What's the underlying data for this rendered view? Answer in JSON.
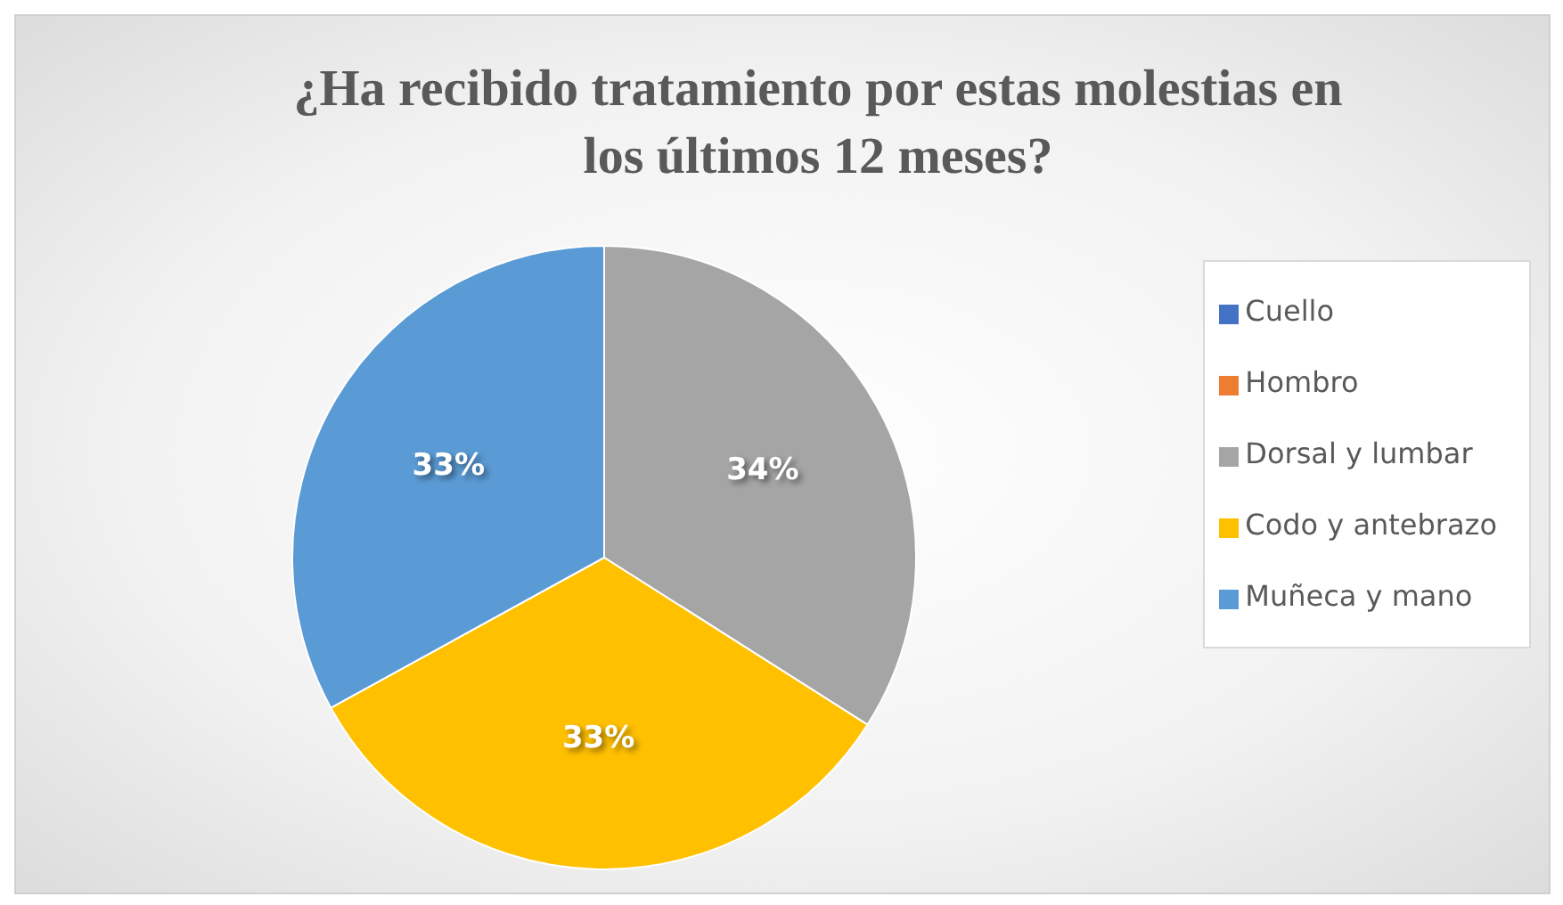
{
  "chart_data": {
    "type": "pie",
    "title": "¿Ha recibido tratamiento por estas molestias en los últimos 12 meses?",
    "categories": [
      "Cuello",
      "Hombro",
      "Dorsal y lumbar",
      "Codo y antebrazo",
      "Muñeca y mano"
    ],
    "values": [
      0,
      0,
      34,
      33,
      33
    ],
    "colors": [
      "#4472c4",
      "#ed7d31",
      "#a5a5a5",
      "#ffc000",
      "#5b9bd5"
    ],
    "value_labels": [
      null,
      null,
      "34%",
      "33%",
      "33%"
    ],
    "legend": "right"
  }
}
